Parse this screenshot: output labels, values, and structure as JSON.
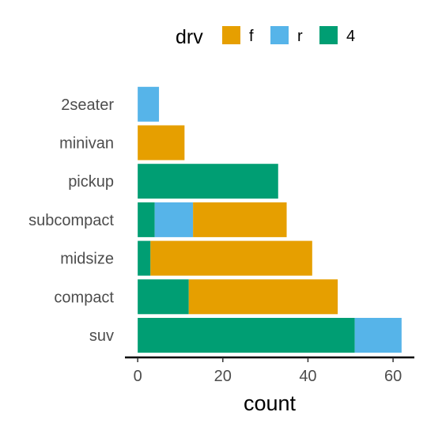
{
  "chart_data": {
    "type": "bar",
    "orientation": "horizontal",
    "stacked": true,
    "categories": [
      "suv",
      "compact",
      "midsize",
      "subcompact",
      "pickup",
      "minivan",
      "2seater"
    ],
    "series": [
      {
        "name": "4",
        "color": "#009E73",
        "values": [
          51,
          12,
          3,
          4,
          33,
          0,
          0
        ]
      },
      {
        "name": "r",
        "color": "#56B4E9",
        "values": [
          11,
          0,
          0,
          9,
          0,
          0,
          5
        ]
      },
      {
        "name": "f",
        "color": "#E69F00",
        "values": [
          0,
          35,
          38,
          22,
          0,
          11,
          0
        ]
      }
    ],
    "stack_order_left_to_right": [
      "4",
      "r",
      "f"
    ],
    "xlabel": "count",
    "ylabel": "",
    "xlim": [
      -3,
      65
    ],
    "xticks": [
      "0",
      "20",
      "40",
      "60"
    ],
    "xtick_values": [
      0,
      20,
      40,
      60
    ],
    "legend": {
      "title": "drv",
      "placement": "top",
      "entries": [
        {
          "label": "f",
          "color": "#E69F00"
        },
        {
          "label": "r",
          "color": "#56B4E9"
        },
        {
          "label": "4",
          "color": "#009E73"
        }
      ]
    },
    "grid": false
  }
}
